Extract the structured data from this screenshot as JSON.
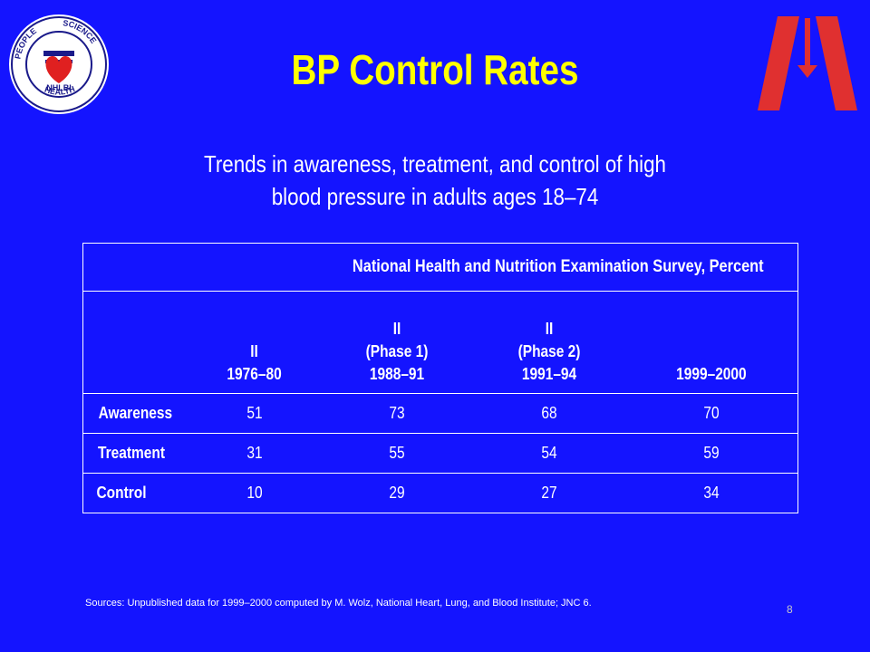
{
  "slide": {
    "title": "BP Control Rates",
    "subtitle_line1": "Trends in awareness, treatment, and control of high",
    "subtitle_line2": "blood pressure in adults ages 18–74",
    "logo_left": {
      "icon": "nhlbi-seal-icon",
      "text_top_left": "PEOPLE",
      "text_top_right": "SCIENCE",
      "text_bottom": "HEALTH",
      "text_center": "NHLBI"
    },
    "logo_right": {
      "icon": "ash-logo-icon"
    },
    "sources": "Sources:  Unpublished data for 1999–2000  computed by M. Wolz, National Heart, Lung, and Blood Institute; JNC 6.",
    "slide_number": "8"
  },
  "table": {
    "survey_header": "National Health and Nutrition Examination Survey, Percent",
    "columns": [
      {
        "line1": "",
        "line2": "II",
        "line3": "1976–80"
      },
      {
        "line1": "II",
        "line2": "(Phase 1)",
        "line3": "1988–91"
      },
      {
        "line1": "II",
        "line2": "(Phase 2)",
        "line3": "1991–94"
      },
      {
        "line1": "",
        "line2": "",
        "line3": "1999–2000"
      }
    ],
    "rows": [
      {
        "label": "Awareness",
        "values": [
          "51",
          "73",
          "68",
          "70"
        ]
      },
      {
        "label": "Treatment",
        "values": [
          "31",
          "55",
          "54",
          "59"
        ]
      },
      {
        "label": "Control",
        "values": [
          "10",
          "29",
          "27",
          "34"
        ]
      }
    ]
  }
}
